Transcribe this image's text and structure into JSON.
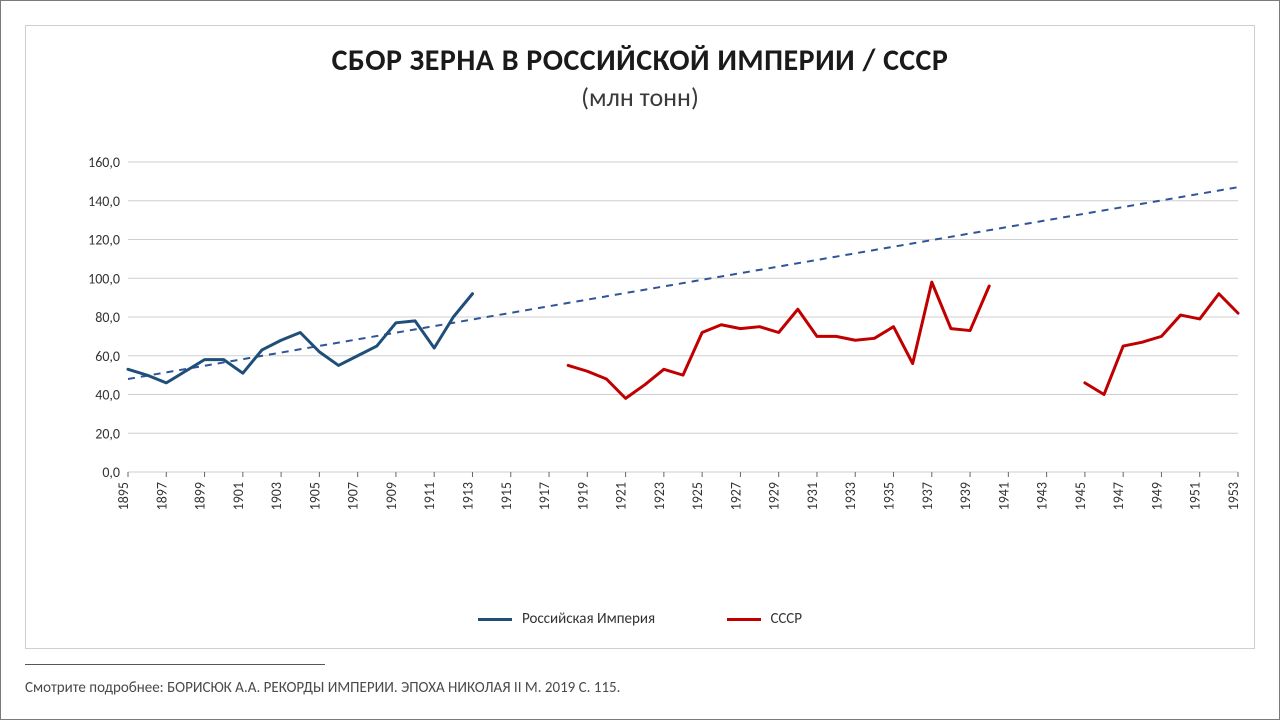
{
  "title_main": "СБОР ЗЕРНА В РОССИЙСКОЙ ИМПЕРИИ / СССР",
  "title_sub": "(млн тонн)",
  "source_text": "Смотрите подробнее: БОРИСЮК А.А. РЕКОРДЫ ИМПЕРИИ. ЭПОХА НИКОЛАЯ II М. 2019 С. 115.",
  "legend": {
    "series1_label": "Российская Империя",
    "series2_label": "СССР"
  },
  "chart": {
    "type": "line",
    "background_color": "#ffffff",
    "grid_color": "#cfcfcf",
    "title_fontsize": 30,
    "subtitle_fontsize": 26,
    "label_fontsize": 14,
    "x": {
      "min": 1895,
      "max": 1953,
      "tick_step": 2,
      "ticks": [
        1895,
        1897,
        1899,
        1901,
        1903,
        1905,
        1907,
        1909,
        1911,
        1913,
        1915,
        1917,
        1919,
        1921,
        1923,
        1925,
        1927,
        1929,
        1931,
        1933,
        1935,
        1937,
        1939,
        1941,
        1943,
        1945,
        1947,
        1949,
        1951,
        1953
      ]
    },
    "y": {
      "min": 0,
      "max": 160,
      "tick_step": 20,
      "ticks": [
        0,
        20,
        40,
        60,
        80,
        100,
        120,
        140,
        160
      ],
      "tick_labels": [
        "0,0",
        "20,0",
        "40,0",
        "60,0",
        "80,0",
        "100,0",
        "120,0",
        "140,0",
        "160,0"
      ]
    },
    "trend": {
      "color": "#2f5597",
      "dash": "7 6",
      "width": 2,
      "points": [
        [
          1895,
          48
        ],
        [
          1953,
          147
        ]
      ]
    },
    "series": [
      {
        "name": "Российская Империя",
        "color": "#1f4e79",
        "width": 3,
        "data": [
          [
            1895,
            53
          ],
          [
            1896,
            50
          ],
          [
            1897,
            46
          ],
          [
            1898,
            52
          ],
          [
            1899,
            58
          ],
          [
            1900,
            58
          ],
          [
            1901,
            51
          ],
          [
            1902,
            63
          ],
          [
            1903,
            68
          ],
          [
            1904,
            72
          ],
          [
            1905,
            62
          ],
          [
            1906,
            55
          ],
          [
            1907,
            60
          ],
          [
            1908,
            65
          ],
          [
            1909,
            77
          ],
          [
            1910,
            78
          ],
          [
            1911,
            64
          ],
          [
            1912,
            80
          ],
          [
            1913,
            92
          ]
        ]
      },
      {
        "name": "СССР",
        "color": "#c00000",
        "width": 3,
        "segments": [
          [
            [
              1918,
              55
            ],
            [
              1919,
              52
            ],
            [
              1920,
              48
            ],
            [
              1921,
              38
            ],
            [
              1922,
              45
            ],
            [
              1923,
              53
            ],
            [
              1924,
              50
            ],
            [
              1925,
              72
            ],
            [
              1926,
              76
            ],
            [
              1927,
              74
            ],
            [
              1928,
              75
            ],
            [
              1929,
              72
            ],
            [
              1930,
              84
            ],
            [
              1931,
              70
            ],
            [
              1932,
              70
            ],
            [
              1933,
              68
            ],
            [
              1934,
              69
            ],
            [
              1935,
              75
            ],
            [
              1936,
              56
            ],
            [
              1937,
              98
            ],
            [
              1938,
              74
            ],
            [
              1939,
              73
            ],
            [
              1940,
              96
            ]
          ],
          [
            [
              1945,
              46
            ],
            [
              1946,
              40
            ],
            [
              1947,
              65
            ],
            [
              1948,
              67
            ],
            [
              1949,
              70
            ],
            [
              1950,
              81
            ],
            [
              1951,
              79
            ],
            [
              1952,
              92
            ],
            [
              1953,
              82
            ]
          ]
        ]
      }
    ]
  }
}
